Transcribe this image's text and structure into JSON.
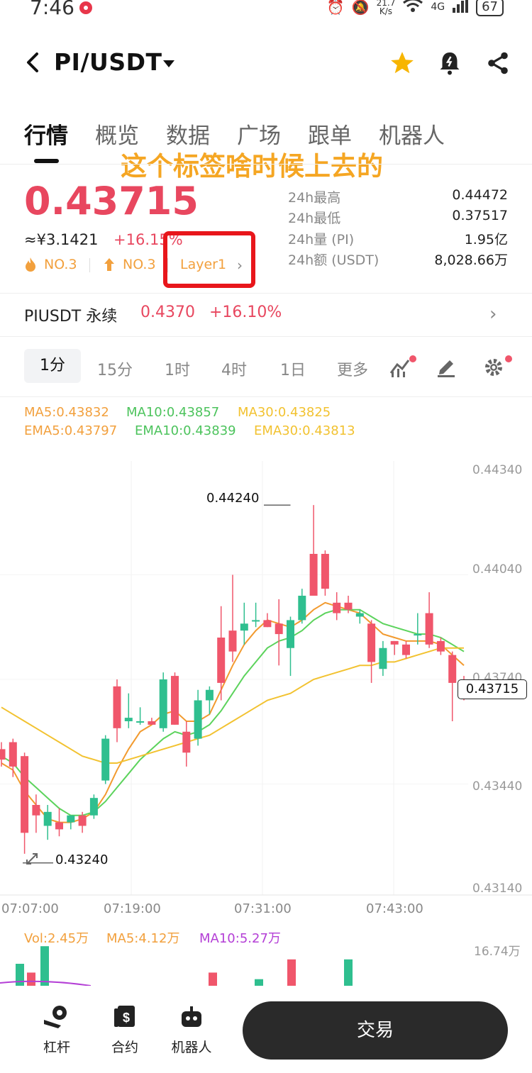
{
  "status": {
    "time": "7:46",
    "net_speed_top": "21.7",
    "net_speed_bottom": "K/s",
    "network": "4G",
    "battery": "67"
  },
  "header": {
    "pair": "PI/USDT"
  },
  "tabs": [
    "行情",
    "概览",
    "数据",
    "广场",
    "跟单",
    "机器人"
  ],
  "annotation": "这个标签啥时候上去的",
  "ticker": {
    "price": "0.43715",
    "cny": "≈¥3.1421",
    "change": "+16.15%",
    "rank_hot": "NO.3",
    "rank_gain": "NO.3",
    "tag": "Layer1"
  },
  "stats": [
    {
      "label": "24h最高",
      "value": "0.44472"
    },
    {
      "label": "24h最低",
      "value": "0.37517"
    },
    {
      "label": "24h量 (PI)",
      "value": "1.95亿"
    },
    {
      "label": "24h额 (USDT)",
      "value": "8,028.66万"
    }
  ],
  "perp": {
    "name": "PIUSDT 永续",
    "price": "0.4370",
    "change": "+16.10%"
  },
  "intervals": [
    "1分",
    "15分",
    "1时",
    "4时",
    "1日",
    "更多"
  ],
  "indicators": {
    "ma5": "MA5:0.43832",
    "ma10": "MA10:0.43857",
    "ma30": "MA30:0.43825",
    "ema5": "EMA5:0.43797",
    "ema10": "EMA10:0.43839",
    "ema30": "EMA30:0.43813"
  },
  "chart_data": {
    "type": "candlestick",
    "y_ticks": [
      "0.44340",
      "0.44040",
      "0.43740",
      "0.43440",
      "0.43140"
    ],
    "x_ticks": [
      "07:07:00",
      "07:19:00",
      "07:31:00",
      "07:43:00"
    ],
    "high_marker": "0.44240",
    "low_marker": "0.43240",
    "last_price": "0.43715",
    "colors": {
      "up": "#2fbf8f",
      "down": "#f0566b"
    },
    "candles": [
      [
        0.4354,
        0.4356,
        0.4349,
        0.4351
      ],
      [
        0.4356,
        0.4357,
        0.4346,
        0.4349
      ],
      [
        0.4352,
        0.4353,
        0.4324,
        0.433
      ],
      [
        0.4338,
        0.4341,
        0.433,
        0.4335
      ],
      [
        0.4332,
        0.4338,
        0.4328,
        0.4336
      ],
      [
        0.4333,
        0.4337,
        0.4329,
        0.4331
      ],
      [
        0.4333,
        0.4335,
        0.4331,
        0.4335
      ],
      [
        0.4335,
        0.4336,
        0.433,
        0.4332
      ],
      [
        0.4335,
        0.4341,
        0.4334,
        0.434
      ],
      [
        0.4345,
        0.4358,
        0.4344,
        0.4357
      ],
      [
        0.4372,
        0.4374,
        0.4356,
        0.436
      ],
      [
        0.4362,
        0.437,
        0.436,
        0.4363
      ],
      [
        0.4362,
        0.4366,
        0.4361,
        0.4362
      ],
      [
        0.4362,
        0.4363,
        0.4361,
        0.4361
      ],
      [
        0.436,
        0.4376,
        0.4359,
        0.4374
      ],
      [
        0.4375,
        0.4376,
        0.4361,
        0.4361
      ],
      [
        0.4359,
        0.4362,
        0.4349,
        0.4353
      ],
      [
        0.4357,
        0.4371,
        0.4355,
        0.4368
      ],
      [
        0.4368,
        0.4372,
        0.4364,
        0.4371
      ],
      [
        0.4386,
        0.4395,
        0.4368,
        0.4373
      ],
      [
        0.4388,
        0.4404,
        0.4379,
        0.4382
      ],
      [
        0.4388,
        0.4396,
        0.4384,
        0.439
      ],
      [
        0.4391,
        0.4396,
        0.4389,
        0.4391
      ],
      [
        0.4391,
        0.4393,
        0.4389,
        0.4389
      ],
      [
        0.439,
        0.4397,
        0.4378,
        0.4387
      ],
      [
        0.4383,
        0.4392,
        0.4375,
        0.4391
      ],
      [
        0.4391,
        0.44,
        0.439,
        0.4398
      ],
      [
        0.441,
        0.4424,
        0.4398,
        0.4398
      ],
      [
        0.441,
        0.4411,
        0.4398,
        0.44
      ],
      [
        0.4396,
        0.4399,
        0.4391,
        0.4393
      ],
      [
        0.4396,
        0.4398,
        0.4393,
        0.4394
      ],
      [
        0.4392,
        0.4394,
        0.439,
        0.4393
      ],
      [
        0.439,
        0.4391,
        0.4373,
        0.4379
      ],
      [
        0.4377,
        0.4385,
        0.4375,
        0.4383
      ],
      [
        0.4385,
        0.4385,
        0.4381,
        0.4384
      ],
      [
        0.4384,
        0.4385,
        0.438,
        0.4381
      ],
      [
        0.4387,
        0.4393,
        0.4384,
        0.4387
      ],
      [
        0.4393,
        0.4399,
        0.4383,
        0.4384
      ],
      [
        0.4385,
        0.4386,
        0.4381,
        0.4382
      ],
      [
        0.4381,
        0.4382,
        0.4362,
        0.4373
      ],
      [
        0.4373,
        0.4375,
        0.4368,
        0.4371
      ]
    ],
    "ma_lines": {
      "orange_fast": [
        0.435,
        0.4348,
        0.4342,
        0.4338,
        0.4334,
        0.4333,
        0.4333,
        0.4334,
        0.4336,
        0.4341,
        0.4348,
        0.4354,
        0.4359,
        0.4361,
        0.4364,
        0.4365,
        0.4362,
        0.4362,
        0.4364,
        0.4371,
        0.4378,
        0.4384,
        0.4388,
        0.4391,
        0.439,
        0.4389,
        0.4391,
        0.4394,
        0.4396,
        0.4395,
        0.4394,
        0.4393,
        0.439,
        0.4387,
        0.4386,
        0.4385,
        0.4385,
        0.4385,
        0.4384,
        0.4381,
        0.4378
      ],
      "green_mid": [
        0.4352,
        0.435,
        0.4346,
        0.4343,
        0.434,
        0.4337,
        0.4335,
        0.4335,
        0.4336,
        0.4339,
        0.4343,
        0.4347,
        0.4351,
        0.4354,
        0.4357,
        0.4359,
        0.4358,
        0.4359,
        0.4361,
        0.4365,
        0.437,
        0.4375,
        0.4379,
        0.4383,
        0.4385,
        0.4386,
        0.4388,
        0.4391,
        0.4393,
        0.4394,
        0.4394,
        0.4394,
        0.4392,
        0.439,
        0.4389,
        0.4388,
        0.4387,
        0.4387,
        0.4386,
        0.4384,
        0.4382
      ],
      "yellow_slow": [
        0.4366,
        0.4364,
        0.4362,
        0.436,
        0.4358,
        0.4356,
        0.4354,
        0.4352,
        0.4351,
        0.435,
        0.435,
        0.4351,
        0.4352,
        0.4353,
        0.4354,
        0.4355,
        0.4356,
        0.4357,
        0.4358,
        0.436,
        0.4362,
        0.4364,
        0.4366,
        0.4368,
        0.4369,
        0.437,
        0.4372,
        0.4374,
        0.4375,
        0.4376,
        0.4377,
        0.4378,
        0.4378,
        0.4379,
        0.4379,
        0.438,
        0.4381,
        0.4382,
        0.4383,
        0.4383,
        0.4383
      ]
    }
  },
  "volume": {
    "vol": "Vol:2.45万",
    "ma5": "MA5:4.12万",
    "ma10": "MA10:5.27万",
    "axis_top": "16.74万"
  },
  "bottom_nav": {
    "leverage": "杠杆",
    "contract": "合约",
    "robot": "机器人",
    "trade": "交易"
  }
}
